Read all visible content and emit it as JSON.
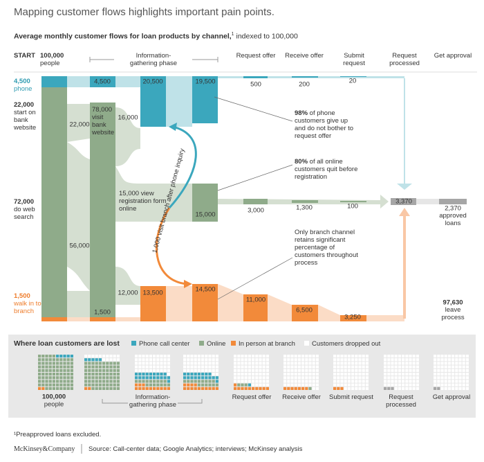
{
  "title": "Mapping customer flows highlights important pain points.",
  "subtitle": {
    "text": "Average monthly customer flows for loan products by channel,",
    "note": "1",
    "rest": "indexed to 100,000"
  },
  "start": {
    "label": "START",
    "value": "100,000",
    "text": "people"
  },
  "stages": [
    "Information-gathering phase",
    "Request offer",
    "Receive offer",
    "Submit request",
    "Request processed",
    "Get approval"
  ],
  "entries": [
    {
      "value": "4,500",
      "text": "phone"
    },
    {
      "value": "22,000",
      "text": "start on bank website"
    },
    {
      "value": "72,000",
      "text": "do web search"
    },
    {
      "value": "1,500",
      "text": "walk in to branch"
    }
  ],
  "flow_labels": [
    "4,500",
    "22,000",
    "78,000 visit bank website",
    "16,000",
    "56,000",
    "15,000 view registration form online",
    "12,000",
    "1,500",
    "20,500",
    "13,500",
    "19,500",
    "15,000",
    "14,500",
    "500",
    "200",
    "20",
    "3,000",
    "1,300",
    "100",
    "3,370",
    "11,000",
    "6,500",
    "3,250"
  ],
  "curve_label": "1,000 visit branch after phone inquiry",
  "outcomes": [
    {
      "value": "2,370",
      "text": "approved loans"
    },
    {
      "value": "97,630",
      "text": "leave process"
    }
  ],
  "annotations": [
    {
      "bold": "98%",
      "text": "of phone customers give up and do not bother to request offer"
    },
    {
      "bold": "80%",
      "text": "of all online customers quit before registration"
    },
    {
      "text": "Only branch channel retains significant percentage of customers throughout process"
    }
  ],
  "panel": {
    "title": "Where loan customers are lost",
    "legend": [
      "Phone call center",
      "Online",
      "In person at branch",
      "Customers dropped out"
    ],
    "grids": [
      {
        "phone": 5,
        "online": 93,
        "branch": 2,
        "processed": 0
      },
      {
        "phone": 5,
        "online": 78,
        "branch": 2,
        "processed": 0
      },
      {
        "phone": 20,
        "online": 16,
        "branch": 13,
        "processed": 0
      },
      {
        "phone": 19,
        "online": 15,
        "branch": 14,
        "processed": 0
      },
      {
        "phone": 1,
        "online": 3,
        "branch": 11,
        "processed": 0
      },
      {
        "phone": 0,
        "online": 1,
        "branch": 7,
        "processed": 0
      },
      {
        "phone": 0,
        "online": 0,
        "branch": 3,
        "processed": 0
      },
      {
        "phone": 0,
        "online": 0,
        "branch": 0,
        "processed": 3
      },
      {
        "phone": 0,
        "online": 0,
        "branch": 0,
        "processed": 2
      }
    ],
    "labels": [
      {
        "value": "100,000",
        "text": "people"
      },
      {
        "text": "Information-gathering phase"
      },
      {
        "text": "Request offer"
      },
      {
        "text": "Receive offer"
      },
      {
        "text": "Submit request"
      },
      {
        "text": "Request processed"
      },
      {
        "text": "Get approval"
      }
    ]
  },
  "footnote": "¹Preapproved loans excluded.",
  "footer": {
    "brand": "McKinsey&Company",
    "source": "Source: Call-center data; Google Analytics; interviews; McKinsey analysis"
  }
}
